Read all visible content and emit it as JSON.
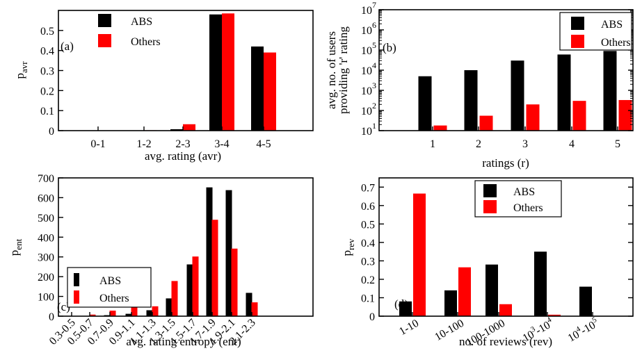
{
  "colors": {
    "abs": "#000000",
    "others": "#ff0000",
    "axis": "#000000",
    "background": "#ffffff"
  },
  "chart_data": [
    {
      "panel": "(a)",
      "type": "bar",
      "categories": [
        "0-1",
        "1-2",
        "2-3",
        "3-4",
        "4-5"
      ],
      "series": [
        {
          "name": "ABS",
          "values": [
            0.0,
            0.001,
            0.007,
            0.58,
            0.42
          ]
        },
        {
          "name": "Others",
          "values": [
            0.0,
            0.002,
            0.032,
            0.585,
            0.39
          ]
        }
      ],
      "xlabel": "avg. rating (avr)",
      "ylabel_main": "p",
      "ylabel_sub": "avr",
      "ylim": [
        0,
        0.6
      ],
      "yticks": [
        0,
        0.1,
        0.2,
        0.3,
        0.4,
        0.5
      ],
      "ytick_labels": [
        "0",
        "0.1",
        "0.2",
        "0.3",
        "0.4",
        "0.5"
      ],
      "legend_placement": "top-left"
    },
    {
      "panel": "(b)",
      "type": "bar",
      "yscale": "log",
      "categories": [
        "1",
        "2",
        "3",
        "4",
        "5"
      ],
      "series": [
        {
          "name": "ABS",
          "values": [
            5000,
            10000,
            30000,
            60000,
            90000
          ]
        },
        {
          "name": "Others",
          "values": [
            18,
            55,
            200,
            300,
            330
          ]
        }
      ],
      "xlabel": "ratings (r)",
      "ylabel_lines": [
        "avg. no. of users",
        "providing 'r' rating"
      ],
      "ylim": [
        10,
        10000000
      ],
      "yticks": [
        10,
        100,
        1000,
        10000,
        100000,
        1000000,
        10000000
      ],
      "ytick_mantissa": [
        "10",
        "10",
        "10",
        "10",
        "10",
        "10",
        "10"
      ],
      "ytick_exponents": [
        "1",
        "2",
        "3",
        "4",
        "5",
        "6",
        "7"
      ],
      "legend_placement": "top-right"
    },
    {
      "panel": "(c)",
      "type": "bar",
      "categories": [
        "0.3-0.5",
        "0.5-0.7",
        "0.7-0.9",
        "0.9-1.1",
        "1.1-1.3",
        "1.3-1.5",
        "1.5-1.7",
        "1.7-1.9",
        "1.9-2.1",
        "2.1-2.3"
      ],
      "series": [
        {
          "name": "ABS",
          "values": [
            0,
            0,
            5,
            12,
            30,
            90,
            262,
            652,
            638,
            118
          ]
        },
        {
          "name": "Others",
          "values": [
            0,
            8,
            28,
            135,
            50,
            178,
            302,
            488,
            342,
            70
          ]
        }
      ],
      "xlabel": "avg. rating entropy (ent)",
      "ylabel_main": "p",
      "ylabel_sub": "ent",
      "ylim": [
        0,
        700
      ],
      "yticks": [
        0,
        100,
        200,
        300,
        400,
        500,
        600,
        700
      ],
      "ytick_labels": [
        "0",
        "100",
        "200",
        "300",
        "400",
        "500",
        "600",
        "700"
      ],
      "legend_placement": "bottom-left"
    },
    {
      "panel": "(d)",
      "type": "bar",
      "categories": [
        "1-10",
        "10-100",
        "100-1000",
        "10^3-10^4",
        "10^4-10^5"
      ],
      "category_labels": [
        {
          "plain": "1-10"
        },
        {
          "plain": "10-100"
        },
        {
          "plain": "100-1000"
        },
        {
          "base1": "10",
          "exp1": "3",
          "mid": "-10",
          "exp2": "4"
        },
        {
          "base1": "10",
          "exp1": "4",
          "mid": "-10",
          "exp2": "5"
        }
      ],
      "series": [
        {
          "name": "ABS",
          "values": [
            0.08,
            0.14,
            0.28,
            0.35,
            0.16
          ]
        },
        {
          "name": "Others",
          "values": [
            0.665,
            0.265,
            0.065,
            0.008,
            0.0
          ]
        }
      ],
      "xlabel": "no. of reviews (rev)",
      "ylabel_main": "p",
      "ylabel_sub": "rev",
      "ylim": [
        0,
        0.75
      ],
      "yticks": [
        0,
        0.1,
        0.2,
        0.3,
        0.4,
        0.5,
        0.6,
        0.7
      ],
      "ytick_labels": [
        "0",
        "0.1",
        "0.2",
        "0.3",
        "0.4",
        "0.5",
        "0.6",
        "0.7"
      ],
      "legend_placement": "top-center"
    }
  ]
}
